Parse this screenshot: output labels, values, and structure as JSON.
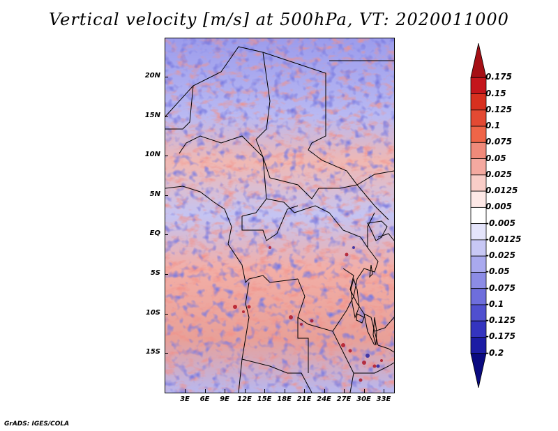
{
  "title": "Vertical velocity [m/s] at 500hPa, VT: 2020011000",
  "credit": "GrADS: IGES/COLA",
  "map": {
    "lat_labels": [
      "20N",
      "15N",
      "10N",
      "5N",
      "EQ",
      "5S",
      "10S",
      "15S"
    ],
    "lon_labels": [
      "3E",
      "6E",
      "9E",
      "12E",
      "15E",
      "18E",
      "21E",
      "24E",
      "27E",
      "30E",
      "33E"
    ]
  },
  "colorbar": {
    "labels": [
      "0.175",
      "0.15",
      "0.125",
      "0.1",
      "0.075",
      "0.05",
      "0.025",
      "0.0125",
      "0.005",
      "-0.005",
      "-0.0125",
      "-0.025",
      "-0.05",
      "-0.075",
      "-0.1",
      "-0.125",
      "-0.175",
      "-0.2"
    ],
    "colors": [
      "#a50f15",
      "#c4161c",
      "#d7301f",
      "#e34a33",
      "#ef6548",
      "#f08a7a",
      "#f4a9a0",
      "#f9cdc8",
      "#fde8e6",
      "#ffffff",
      "#e4e4fb",
      "#c8c8f5",
      "#a9a9ee",
      "#8c8ce6",
      "#6e6edc",
      "#5050cf",
      "#3434bf",
      "#1c1ca4",
      "#0a0a80"
    ]
  }
}
